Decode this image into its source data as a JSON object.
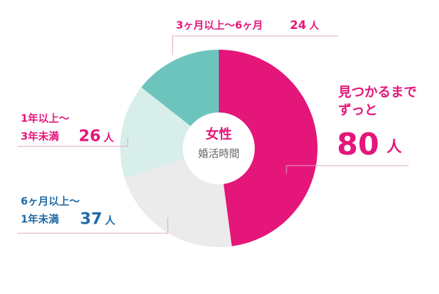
{
  "chart_data": {
    "type": "donut",
    "center_title": "女性",
    "center_subtitle": "婚活時間",
    "unit": "人",
    "series": [
      {
        "name": [
          "見つかるまで",
          "ずっと"
        ],
        "value": 80,
        "color": "#e5167a",
        "text_color": "#e5167a"
      },
      {
        "name": [
          "6ヶ月以上〜",
          "1年未満"
        ],
        "value": 37,
        "color": "#ebebeb",
        "text_color": "#1f6aa5"
      },
      {
        "name": [
          "1年以上〜",
          "3年未満"
        ],
        "value": 26,
        "color": "#d8eeeb",
        "text_color": "#e5167a"
      },
      {
        "name": [
          "3ヶ月以上〜6ヶ月"
        ],
        "value": 24,
        "color": "#6cc4bd",
        "text_color": "#e5167a"
      }
    ]
  }
}
